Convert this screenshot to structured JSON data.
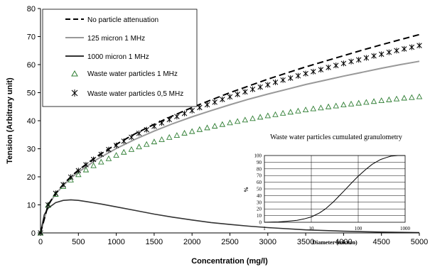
{
  "chart_data": [
    {
      "type": "line",
      "title": "",
      "xlabel": "Concentration (mg/l)",
      "ylabel": "Tension (Arbitrary unit)",
      "xlim": [
        0,
        5000
      ],
      "ylim": [
        0,
        80
      ],
      "xticks": [
        0,
        500,
        1000,
        1500,
        2000,
        2500,
        3000,
        3500,
        4000,
        4500,
        5000
      ],
      "yticks": [
        0,
        10,
        20,
        30,
        40,
        50,
        60,
        70,
        80
      ],
      "legend_position": "top-left",
      "series": [
        {
          "name": "No particle attenuation",
          "style": "dashed",
          "color": "#000000",
          "x": [
            0,
            100,
            200,
            300,
            400,
            500,
            750,
            1000,
            1250,
            1500,
            1750,
            2000,
            2250,
            2500,
            2750,
            3000,
            3250,
            3500,
            3750,
            4000,
            4250,
            4500,
            4750,
            5000
          ],
          "y": [
            0,
            10.0,
            14.1,
            17.3,
            20.0,
            22.4,
            27.4,
            31.6,
            35.4,
            38.7,
            41.8,
            44.7,
            47.4,
            50.0,
            52.4,
            54.8,
            57.0,
            59.2,
            61.2,
            63.2,
            65.2,
            67.1,
            68.9,
            70.7
          ]
        },
        {
          "name": "125 micron 1 MHz",
          "style": "solid",
          "color": "#999999",
          "x": [
            0,
            100,
            200,
            300,
            400,
            500,
            750,
            1000,
            1250,
            1500,
            1750,
            2000,
            2250,
            2500,
            2750,
            3000,
            3250,
            3500,
            3750,
            4000,
            4250,
            4500,
            4750,
            5000
          ],
          "y": [
            0,
            9.9,
            13.9,
            16.9,
            19.5,
            21.7,
            26.3,
            30.1,
            33.4,
            36.3,
            39.0,
            41.4,
            43.6,
            45.7,
            47.7,
            49.5,
            51.2,
            52.9,
            54.4,
            55.9,
            57.3,
            58.7,
            60.0,
            61.2
          ]
        },
        {
          "name": "1000 micron 1 MHz",
          "style": "solid",
          "color": "#333333",
          "x": [
            0,
            50,
            100,
            200,
            300,
            400,
            500,
            600,
            800,
            1000,
            1250,
            1500,
            1750,
            2000,
            2250,
            2500,
            2750,
            3000,
            3500,
            4000,
            4500,
            5000
          ],
          "y": [
            0,
            6.5,
            8.8,
            10.8,
            11.6,
            11.8,
            11.6,
            11.2,
            10.3,
            9.3,
            8.0,
            6.7,
            5.6,
            4.6,
            3.7,
            3.0,
            2.4,
            1.9,
            1.1,
            0.6,
            0.3,
            0.1
          ]
        },
        {
          "name": "Waste water particles 1 MHz",
          "style": "triangle",
          "color": "#2e7d32",
          "x": [
            0,
            100,
            200,
            300,
            400,
            500,
            600,
            700,
            800,
            900,
            1000,
            1100,
            1200,
            1300,
            1400,
            1500,
            1600,
            1700,
            1800,
            1900,
            2000,
            2100,
            2200,
            2300,
            2400,
            2500,
            2600,
            2700,
            2800,
            2900,
            3000,
            3100,
            3200,
            3300,
            3400,
            3500,
            3600,
            3700,
            3800,
            3900,
            4000,
            4100,
            4200,
            4300,
            4400,
            4500,
            4600,
            4700,
            4800,
            4900,
            5000
          ],
          "y": [
            0,
            9.9,
            13.8,
            16.6,
            18.9,
            20.8,
            22.5,
            24.0,
            25.3,
            26.5,
            27.7,
            28.8,
            29.8,
            30.7,
            31.6,
            32.5,
            33.3,
            34.1,
            34.8,
            35.6,
            36.2,
            36.9,
            37.5,
            38.1,
            38.7,
            39.3,
            39.8,
            40.3,
            40.8,
            41.3,
            41.8,
            42.2,
            42.7,
            43.1,
            43.5,
            43.9,
            44.3,
            44.6,
            45.0,
            45.3,
            45.7,
            46.0,
            46.3,
            46.6,
            46.9,
            47.2,
            47.5,
            47.8,
            48.1,
            48.3,
            48.6
          ]
        },
        {
          "name": "Waste water particles 0,5 MHz",
          "style": "star",
          "color": "#000000",
          "x": [
            0,
            100,
            200,
            300,
            400,
            500,
            600,
            700,
            800,
            900,
            1000,
            1100,
            1200,
            1300,
            1400,
            1500,
            1600,
            1700,
            1800,
            1900,
            2000,
            2100,
            2200,
            2300,
            2400,
            2500,
            2600,
            2700,
            2800,
            2900,
            3000,
            3100,
            3200,
            3300,
            3400,
            3500,
            3600,
            3700,
            3800,
            3900,
            4000,
            4100,
            4200,
            4300,
            4400,
            4500,
            4600,
            4700,
            4800,
            4900,
            5000
          ],
          "y": [
            0,
            10.0,
            14.1,
            17.2,
            19.9,
            22.2,
            24.3,
            26.2,
            28.0,
            29.7,
            31.2,
            32.7,
            34.1,
            35.5,
            36.8,
            38.0,
            39.2,
            40.4,
            41.5,
            42.6,
            43.6,
            44.7,
            45.7,
            46.6,
            47.6,
            48.5,
            49.4,
            50.3,
            51.2,
            52.0,
            52.8,
            53.7,
            54.5,
            55.2,
            56.0,
            56.8,
            57.5,
            58.2,
            59.0,
            59.7,
            60.4,
            61.1,
            61.7,
            62.4,
            63.1,
            63.7,
            64.4,
            65.0,
            65.6,
            66.2,
            66.8
          ]
        }
      ]
    },
    {
      "type": "line",
      "title": "Waste water particles cumulated granulometry",
      "xlabel": "Diameter (micron)",
      "ylabel": "%",
      "xscale": "log",
      "xlim": [
        1,
        1000
      ],
      "ylim": [
        0,
        100
      ],
      "xticks": [
        1,
        10,
        100,
        1000
      ],
      "yticks": [
        0,
        10,
        20,
        30,
        40,
        50,
        60,
        70,
        80,
        90,
        100
      ],
      "grid": true,
      "series": [
        {
          "x": [
            1,
            2,
            3,
            5,
            7,
            10,
            15,
            20,
            30,
            40,
            50,
            70,
            100,
            150,
            200,
            300,
            400,
            500,
            700,
            1000
          ],
          "y": [
            0,
            0.5,
            1.5,
            3,
            5,
            8,
            14,
            20,
            31,
            40,
            47,
            58,
            69,
            80,
            87,
            94,
            97,
            99,
            100,
            100
          ]
        }
      ]
    }
  ]
}
